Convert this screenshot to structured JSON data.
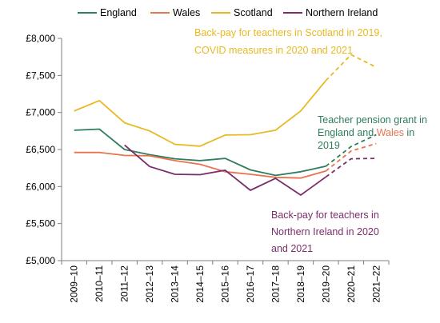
{
  "chart_data": {
    "type": "line",
    "categories": [
      "2009–10",
      "2010–11",
      "2011–12",
      "2012–13",
      "2013–14",
      "2014–15",
      "2015–16",
      "2016–17",
      "2017–18",
      "2018–19",
      "2019–20",
      "2020–21",
      "2021–22"
    ],
    "ylim": [
      5000,
      8000
    ],
    "yticks": [
      5000,
      5500,
      6000,
      6500,
      7000,
      7500,
      8000
    ],
    "ytick_labels": [
      "£5,000",
      "£5,500",
      "£6,000",
      "£6,500",
      "£7,000",
      "£7,500",
      "£8,000"
    ],
    "projection_start_index": 10,
    "legend_position": "top",
    "series": [
      {
        "name": "England",
        "color": "#2e7d5b",
        "values": [
          6760,
          6775,
          6500,
          6430,
          6375,
          6350,
          6380,
          6225,
          6150,
          6200,
          6275,
          6540,
          6700
        ]
      },
      {
        "name": "Wales",
        "color": "#e8734e",
        "values": [
          6460,
          6460,
          6420,
          6415,
          6350,
          6300,
          6200,
          6165,
          6125,
          6115,
          6210,
          6480,
          6580
        ]
      },
      {
        "name": "Scotland",
        "color": "#e8b923",
        "values": [
          7020,
          7160,
          6860,
          6750,
          6570,
          6545,
          6695,
          6700,
          6760,
          7020,
          7430,
          7780,
          7610
        ]
      },
      {
        "name": "Northern Ireland",
        "color": "#7b2d6b",
        "values": [
          null,
          null,
          6560,
          6270,
          6165,
          6160,
          6220,
          5950,
          6110,
          5885,
          6130,
          6375,
          6380
        ]
      }
    ],
    "annotations": [
      {
        "lines": [
          "Back-pay for teachers in Scotland in 2019,",
          "COVID measures in 2020 and 2021"
        ],
        "color": "#e8b923"
      },
      {
        "lines": [
          "Teacher pension grant in",
          "England and ",
          "2019"
        ],
        "highlight": "Wales",
        "suffix": " in",
        "color": "#2e7d5b",
        "highlight_color": "#e8734e"
      },
      {
        "lines": [
          "Back-pay for teachers in",
          "Northern Ireland in 2020",
          "and 2021"
        ],
        "color": "#7b2d6b"
      }
    ]
  }
}
